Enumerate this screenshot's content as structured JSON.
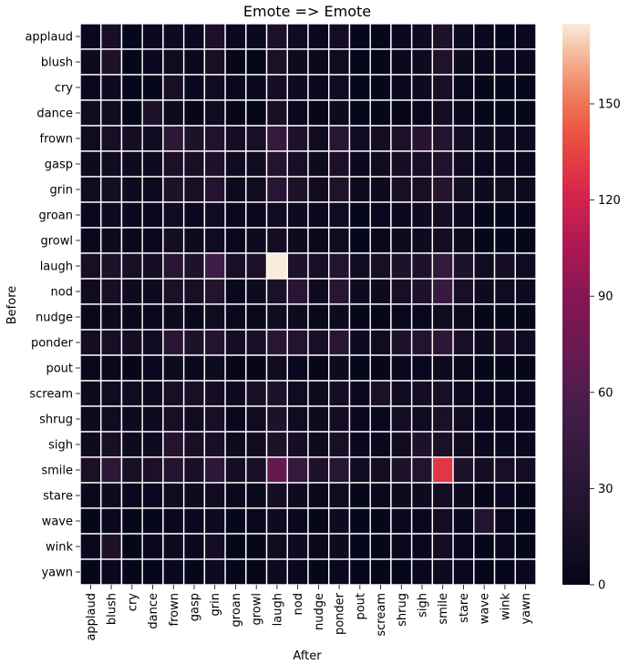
{
  "chart_data": {
    "type": "heatmap",
    "title": "Emote => Emote",
    "xlabel": "After",
    "ylabel": "Before",
    "x_categories": [
      "applaud",
      "blush",
      "cry",
      "dance",
      "frown",
      "gasp",
      "grin",
      "groan",
      "growl",
      "laugh",
      "nod",
      "nudge",
      "ponder",
      "pout",
      "scream",
      "shrug",
      "sigh",
      "smile",
      "stare",
      "wave",
      "wink",
      "yawn"
    ],
    "y_categories": [
      "applaud",
      "blush",
      "cry",
      "dance",
      "frown",
      "gasp",
      "grin",
      "groan",
      "growl",
      "laugh",
      "nod",
      "nudge",
      "ponder",
      "pout",
      "scream",
      "shrug",
      "sigh",
      "smile",
      "stare",
      "wave",
      "wink",
      "yawn"
    ],
    "values": [
      [
        5,
        15,
        2,
        5,
        8,
        5,
        18,
        5,
        5,
        18,
        10,
        5,
        12,
        3,
        3,
        5,
        8,
        20,
        8,
        5,
        3,
        5
      ],
      [
        8,
        20,
        3,
        5,
        10,
        5,
        15,
        3,
        3,
        18,
        8,
        5,
        10,
        3,
        3,
        5,
        8,
        22,
        8,
        5,
        5,
        5
      ],
      [
        5,
        8,
        2,
        3,
        15,
        5,
        10,
        5,
        5,
        12,
        8,
        5,
        10,
        3,
        3,
        5,
        8,
        15,
        5,
        3,
        3,
        3
      ],
      [
        10,
        10,
        2,
        20,
        8,
        3,
        10,
        3,
        3,
        15,
        5,
        3,
        8,
        3,
        3,
        3,
        5,
        12,
        5,
        3,
        3,
        3
      ],
      [
        10,
        15,
        12,
        10,
        35,
        20,
        22,
        12,
        15,
        40,
        20,
        10,
        30,
        10,
        12,
        18,
        28,
        25,
        12,
        8,
        8,
        8
      ],
      [
        8,
        10,
        8,
        8,
        18,
        15,
        20,
        10,
        10,
        25,
        15,
        8,
        18,
        5,
        10,
        12,
        15,
        22,
        10,
        5,
        5,
        5
      ],
      [
        10,
        12,
        8,
        8,
        20,
        15,
        25,
        8,
        10,
        30,
        20,
        10,
        22,
        8,
        8,
        15,
        15,
        28,
        12,
        8,
        10,
        8
      ],
      [
        5,
        8,
        5,
        5,
        10,
        5,
        10,
        5,
        5,
        10,
        8,
        5,
        10,
        3,
        5,
        5,
        8,
        12,
        8,
        3,
        3,
        3
      ],
      [
        5,
        8,
        5,
        5,
        12,
        8,
        10,
        5,
        8,
        12,
        8,
        5,
        10,
        3,
        5,
        8,
        8,
        12,
        8,
        3,
        3,
        3
      ],
      [
        15,
        20,
        15,
        12,
        30,
        20,
        50,
        15,
        18,
        175,
        20,
        15,
        25,
        10,
        15,
        20,
        20,
        40,
        20,
        10,
        12,
        10
      ],
      [
        10,
        15,
        8,
        8,
        18,
        15,
        25,
        5,
        8,
        18,
        30,
        8,
        30,
        8,
        8,
        15,
        20,
        45,
        15,
        8,
        10,
        8
      ],
      [
        5,
        8,
        5,
        5,
        8,
        5,
        10,
        5,
        5,
        10,
        8,
        5,
        8,
        3,
        3,
        5,
        5,
        10,
        8,
        3,
        3,
        3
      ],
      [
        12,
        15,
        12,
        10,
        30,
        20,
        25,
        12,
        15,
        30,
        25,
        15,
        30,
        8,
        10,
        20,
        25,
        35,
        15,
        8,
        12,
        10
      ],
      [
        5,
        5,
        3,
        5,
        8,
        5,
        8,
        3,
        3,
        10,
        5,
        3,
        8,
        3,
        3,
        5,
        5,
        8,
        5,
        3,
        3,
        3
      ],
      [
        8,
        10,
        10,
        8,
        15,
        15,
        12,
        8,
        15,
        20,
        10,
        8,
        12,
        5,
        18,
        10,
        12,
        15,
        8,
        5,
        5,
        5
      ],
      [
        8,
        10,
        8,
        8,
        15,
        10,
        15,
        5,
        10,
        20,
        10,
        8,
        12,
        5,
        5,
        12,
        10,
        18,
        10,
        5,
        5,
        5
      ],
      [
        8,
        15,
        8,
        8,
        25,
        15,
        15,
        8,
        10,
        20,
        12,
        8,
        15,
        5,
        5,
        10,
        20,
        18,
        10,
        5,
        5,
        5
      ],
      [
        18,
        35,
        15,
        18,
        25,
        15,
        35,
        12,
        15,
        70,
        40,
        20,
        30,
        10,
        12,
        20,
        25,
        130,
        20,
        12,
        15,
        12
      ],
      [
        5,
        8,
        5,
        5,
        10,
        8,
        10,
        5,
        5,
        12,
        8,
        5,
        10,
        3,
        5,
        8,
        8,
        12,
        8,
        3,
        5,
        3
      ],
      [
        3,
        5,
        3,
        3,
        5,
        5,
        8,
        3,
        5,
        8,
        5,
        3,
        8,
        3,
        3,
        5,
        5,
        12,
        5,
        25,
        5,
        3
      ],
      [
        5,
        20,
        3,
        5,
        8,
        5,
        12,
        3,
        3,
        10,
        8,
        5,
        8,
        3,
        3,
        5,
        5,
        12,
        5,
        3,
        5,
        3
      ],
      [
        3,
        5,
        3,
        3,
        5,
        3,
        8,
        3,
        3,
        8,
        5,
        3,
        5,
        3,
        3,
        3,
        5,
        8,
        5,
        3,
        3,
        5
      ]
    ],
    "vmin": 0,
    "vmax": 175,
    "colorbar_ticks": [
      0,
      30,
      60,
      90,
      120,
      150
    ],
    "colormap": "rocket",
    "cell_border_color": "#ffffff",
    "legend": "colorbar-right"
  }
}
